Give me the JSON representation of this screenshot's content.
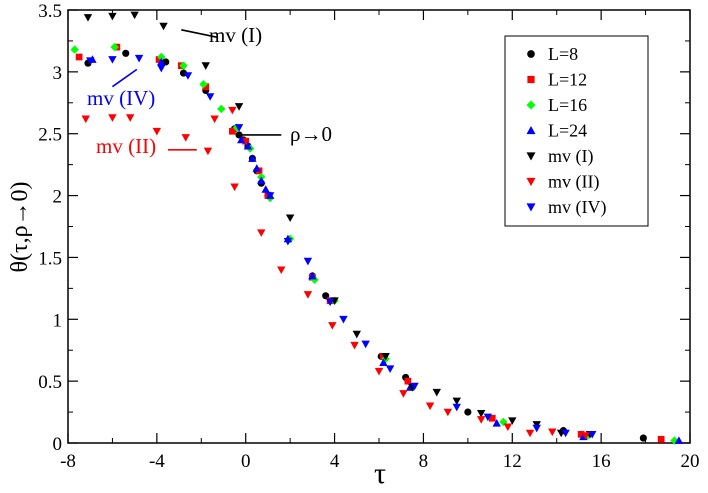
{
  "chart_data": {
    "type": "scatter",
    "title": "",
    "xlabel": "τ",
    "ylabel": "θ(τ,ρ→0)",
    "xlim": [
      -8,
      20
    ],
    "ylim": [
      0,
      3.5
    ],
    "xticks": [
      -8,
      -4,
      0,
      4,
      8,
      12,
      16,
      20
    ],
    "xtick_labels": [
      "-8",
      "-4",
      "0",
      "4",
      "8",
      "12",
      "16",
      "20"
    ],
    "yticks": [
      0,
      0.5,
      1,
      1.5,
      2,
      2.5,
      3,
      3.5
    ],
    "ytick_labels": [
      "0",
      "0.5",
      "1",
      "1.5",
      "2",
      "2.5",
      "3",
      "3.5"
    ],
    "grid": false,
    "legend_position": "top-right",
    "series": [
      {
        "name": "L=8",
        "marker": "circle",
        "color": "#000000",
        "points": [
          [
            -7.1,
            3.07
          ],
          [
            -5.4,
            3.15
          ],
          [
            -3.6,
            3.08
          ],
          [
            -2.8,
            2.99
          ],
          [
            -1.8,
            2.85
          ],
          [
            -0.5,
            2.54
          ],
          [
            -0.3,
            2.49
          ],
          [
            -0.1,
            2.45
          ],
          [
            0.1,
            2.4
          ],
          [
            0.3,
            2.3
          ],
          [
            0.5,
            2.2
          ],
          [
            0.7,
            2.1
          ],
          [
            1.0,
            2.0
          ],
          [
            3.0,
            1.35
          ],
          [
            3.6,
            1.19
          ],
          [
            6.1,
            0.7
          ],
          [
            7.2,
            0.53
          ],
          [
            10.0,
            0.25
          ],
          [
            14.3,
            0.1
          ],
          [
            17.9,
            0.04
          ]
        ]
      },
      {
        "name": "L=12",
        "marker": "square",
        "color": "#ff0000",
        "points": [
          [
            -7.5,
            3.12
          ],
          [
            -5.8,
            3.2
          ],
          [
            -3.9,
            3.1
          ],
          [
            -2.9,
            3.05
          ],
          [
            -1.8,
            2.88
          ],
          [
            -0.6,
            2.52
          ],
          [
            0.0,
            2.44
          ],
          [
            0.6,
            2.2
          ],
          [
            1.0,
            2.0
          ],
          [
            3.0,
            1.34
          ],
          [
            3.8,
            1.15
          ],
          [
            6.2,
            0.7
          ],
          [
            7.3,
            0.5
          ],
          [
            11.1,
            0.2
          ],
          [
            15.1,
            0.07
          ],
          [
            18.7,
            0.03
          ]
        ]
      },
      {
        "name": "L=16",
        "marker": "diamond",
        "color": "#00ff00",
        "points": [
          [
            -7.7,
            3.18
          ],
          [
            -5.9,
            3.2
          ],
          [
            -3.8,
            3.12
          ],
          [
            -2.8,
            3.05
          ],
          [
            -1.9,
            2.9
          ],
          [
            -1.1,
            2.7
          ],
          [
            -0.4,
            2.55
          ],
          [
            0.2,
            2.38
          ],
          [
            0.7,
            2.15
          ],
          [
            1.1,
            1.98
          ],
          [
            2.0,
            1.65
          ],
          [
            3.1,
            1.32
          ],
          [
            4.0,
            1.15
          ],
          [
            6.3,
            0.68
          ],
          [
            7.5,
            0.45
          ],
          [
            11.6,
            0.17
          ],
          [
            15.4,
            0.06
          ],
          [
            19.3,
            0.02
          ]
        ]
      },
      {
        "name": "L=24",
        "marker": "triangle-up",
        "color": "#0000ff",
        "points": [
          [
            -6.9,
            3.1
          ],
          [
            -3.8,
            3.08
          ],
          [
            -0.2,
            2.45
          ],
          [
            0.1,
            2.4
          ],
          [
            0.3,
            2.3
          ],
          [
            0.5,
            2.22
          ],
          [
            0.7,
            2.12
          ],
          [
            0.9,
            2.05
          ],
          [
            1.1,
            2.0
          ],
          [
            1.9,
            1.65
          ],
          [
            3.0,
            1.35
          ],
          [
            6.2,
            0.65
          ],
          [
            7.4,
            0.45
          ],
          [
            11.3,
            0.16
          ],
          [
            15.2,
            0.05
          ],
          [
            19.5,
            0.02
          ]
        ]
      },
      {
        "name": "mv (I)",
        "marker": "triangle-down",
        "color": "#000000",
        "points": [
          [
            -7.1,
            3.44
          ],
          [
            -6.0,
            3.45
          ],
          [
            -5.0,
            3.46
          ],
          [
            -3.7,
            3.37
          ],
          [
            -1.8,
            3.05
          ],
          [
            -0.3,
            2.72
          ],
          [
            2.0,
            1.82
          ],
          [
            4.0,
            1.15
          ],
          [
            5.0,
            0.88
          ],
          [
            6.3,
            0.7
          ],
          [
            7.5,
            0.45
          ],
          [
            8.6,
            0.41
          ],
          [
            9.5,
            0.34
          ],
          [
            10.6,
            0.24
          ],
          [
            12.0,
            0.18
          ],
          [
            13.1,
            0.15
          ],
          [
            14.2,
            0.08
          ],
          [
            15.5,
            0.07
          ]
        ]
      },
      {
        "name": "mv (II)",
        "marker": "triangle-down",
        "color": "#ff0000",
        "points": [
          [
            -7.2,
            2.62
          ],
          [
            -6.0,
            2.63
          ],
          [
            -5.2,
            2.63
          ],
          [
            -4.0,
            2.52
          ],
          [
            -2.7,
            2.47
          ],
          [
            -1.7,
            2.36
          ],
          [
            -0.5,
            2.07
          ],
          [
            -0.6,
            2.69
          ],
          [
            -1.4,
            2.62
          ],
          [
            0.7,
            1.7
          ],
          [
            1.6,
            1.4
          ],
          [
            2.8,
            1.2
          ],
          [
            3.9,
            0.95
          ],
          [
            4.9,
            0.79
          ],
          [
            6.0,
            0.58
          ],
          [
            7.1,
            0.4
          ],
          [
            8.3,
            0.3
          ],
          [
            9.1,
            0.25
          ],
          [
            10.6,
            0.19
          ],
          [
            11.8,
            0.13
          ],
          [
            12.8,
            0.08
          ],
          [
            13.8,
            0.09
          ],
          [
            15.3,
            0.06
          ]
        ]
      },
      {
        "name": "mv (IV)",
        "marker": "triangle-down",
        "color": "#0000ff",
        "points": [
          [
            -7.0,
            3.09
          ],
          [
            -6.0,
            3.1
          ],
          [
            -4.8,
            3.11
          ],
          [
            -3.8,
            3.03
          ],
          [
            -2.6,
            2.97
          ],
          [
            -1.6,
            2.8
          ],
          [
            -0.3,
            2.55
          ],
          [
            1.1,
            2.0
          ],
          [
            1.9,
            1.63
          ],
          [
            2.8,
            1.47
          ],
          [
            3.8,
            1.14
          ],
          [
            4.4,
            1.0
          ],
          [
            5.4,
            0.8
          ],
          [
            6.5,
            0.6
          ],
          [
            7.6,
            0.46
          ],
          [
            9.5,
            0.29
          ],
          [
            10.9,
            0.21
          ],
          [
            13.1,
            0.12
          ],
          [
            14.4,
            0.08
          ],
          [
            15.6,
            0.07
          ]
        ]
      }
    ],
    "annotations": [
      {
        "text": "mv (I)",
        "color": "#000000",
        "arrow_to": [
          -2.9,
          3.34
        ],
        "arrow_from": [
          -1.3,
          3.28
        ]
      },
      {
        "text": "mv (IV)",
        "color": "#0000ff",
        "arrow_to": [
          -4.9,
          3.02
        ],
        "arrow_from": [
          -6.0,
          2.88
        ]
      },
      {
        "text": "mv (II)",
        "color": "#ff0000",
        "arrow_to": [
          -3.5,
          2.37
        ],
        "arrow_from": [
          -2.2,
          2.37
        ]
      },
      {
        "text": "ρ→0",
        "color": "#000000",
        "arrow_to": [
          -0.2,
          2.49
        ],
        "arrow_from": [
          1.6,
          2.49
        ]
      }
    ]
  }
}
